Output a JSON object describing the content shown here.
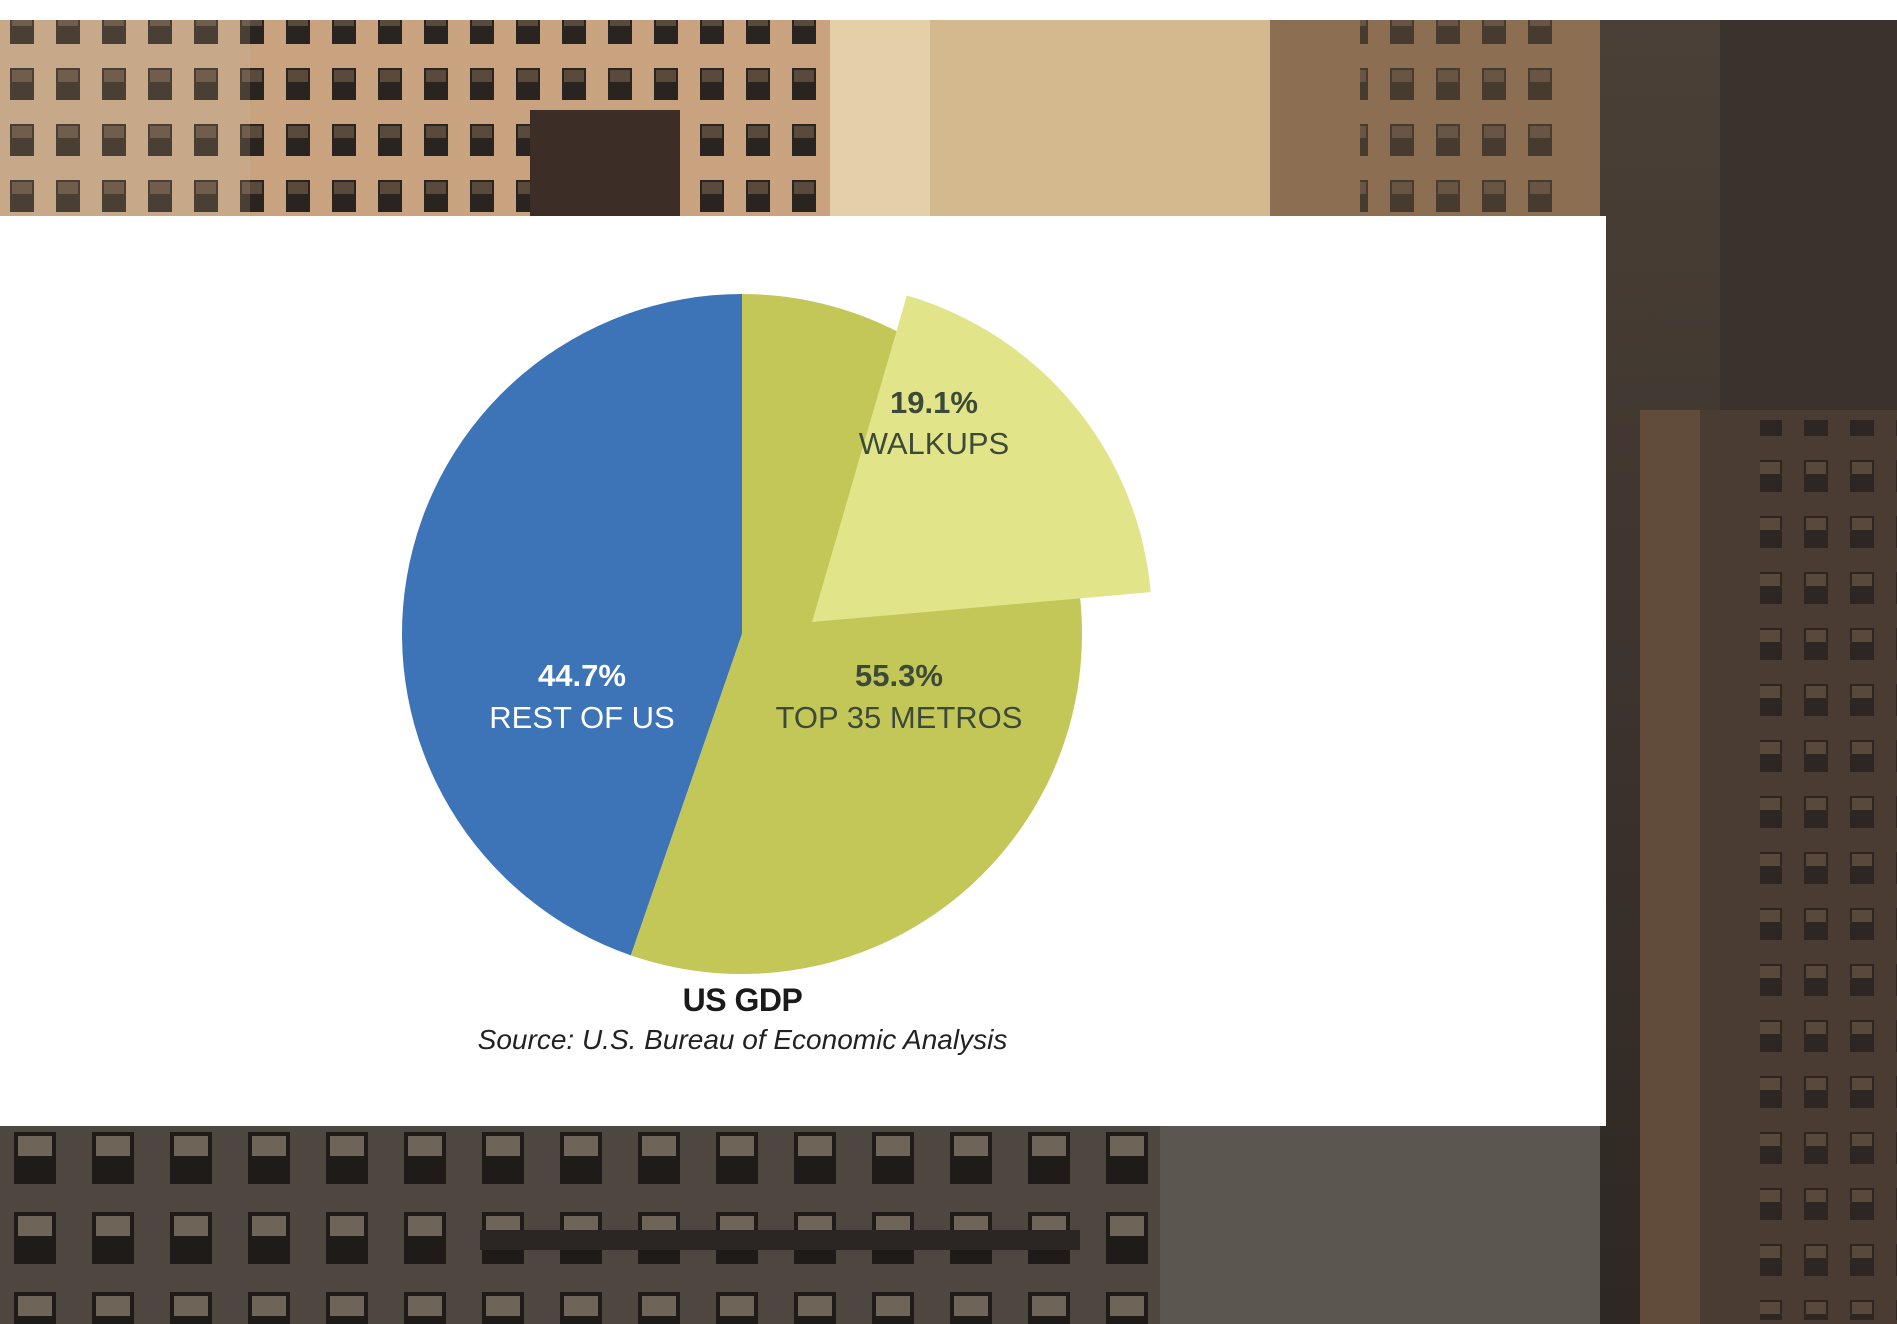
{
  "colors": {
    "rest_of_us": "#3d73b7",
    "top_35_metros": "#c2c758",
    "walkups": "#e2e489",
    "orange_accent": "#e08a2e"
  },
  "background": {
    "description_icon": "city-buildings-photo"
  },
  "chart_data": {
    "type": "pie",
    "title": "US GDP",
    "source": "Source: U.S. Bureau of Economic Analysis",
    "slices": [
      {
        "pct_text": "44.7%",
        "label": "REST OF US",
        "value": 44.7,
        "color": "#3d73b7"
      },
      {
        "pct_text": "55.3%",
        "label": "TOP 35 METROS",
        "value": 55.3,
        "color": "#c2c758"
      }
    ],
    "sub_slice": {
      "pct_text": "19.1%",
      "label": "WALKUPS",
      "value": 19.1,
      "of": "TOP 35 METROS",
      "color": "#e2e489",
      "exploded": true
    }
  }
}
